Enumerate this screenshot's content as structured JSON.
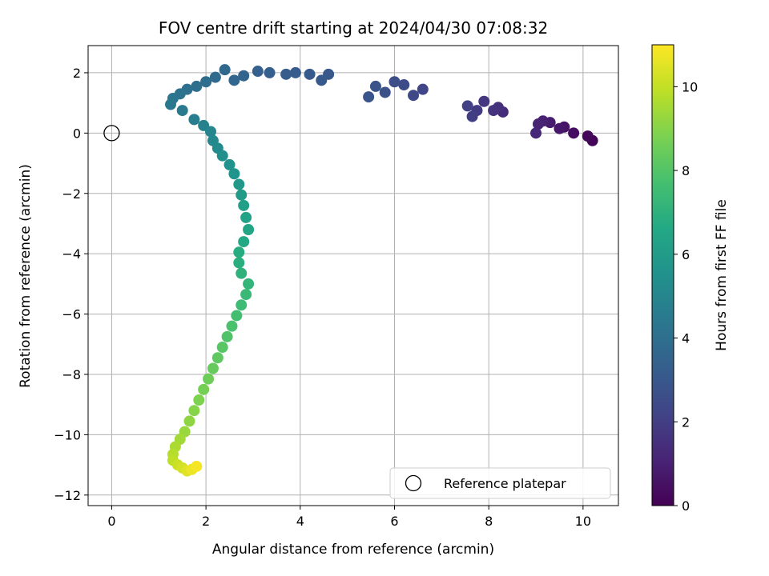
{
  "chart_data": {
    "type": "scatter",
    "title": "FOV centre drift starting at 2024/04/30 07:08:32",
    "xlabel": "Angular distance from reference (arcmin)",
    "ylabel": "Rotation from reference (arcmin)",
    "xlim": [
      -0.5,
      10.75
    ],
    "ylim": [
      -12.35,
      2.9
    ],
    "x_ticks": [
      0,
      2,
      4,
      6,
      8,
      10
    ],
    "y_ticks": [
      -12,
      -10,
      -8,
      -6,
      -4,
      -2,
      0,
      2
    ],
    "grid": true,
    "colormap": "viridis",
    "colorbar": {
      "label": "Hours from first FF file",
      "range": [
        0,
        11
      ],
      "ticks": [
        0,
        2,
        4,
        6,
        8,
        10
      ]
    },
    "reference_point": {
      "x": 0,
      "y": 0,
      "label": "Reference platepar"
    },
    "legend": {
      "placement": "lower-right",
      "entries": [
        "Reference platepar"
      ]
    },
    "series": [
      {
        "x": [
          10.2,
          10.1,
          9.8,
          9.6,
          9.5,
          9.3,
          9.15,
          9.05,
          9.0,
          8.3,
          8.2,
          8.1,
          7.9,
          7.75,
          7.65,
          7.55,
          6.6,
          6.4,
          6.2,
          6.0,
          5.8,
          5.6,
          5.45,
          4.6,
          4.45,
          4.2,
          3.9,
          3.7,
          3.35,
          3.1,
          2.8,
          2.6,
          2.4,
          2.2,
          2.0,
          1.8,
          1.6,
          1.45,
          1.3,
          1.25,
          1.5,
          1.75,
          1.95,
          2.1,
          2.15,
          2.25,
          2.35,
          2.5,
          2.6,
          2.7,
          2.75,
          2.8,
          2.85,
          2.9,
          2.8,
          2.7,
          2.7,
          2.75,
          2.9,
          2.85,
          2.75,
          2.65,
          2.55,
          2.45,
          2.35,
          2.25,
          2.15,
          2.05,
          1.95,
          1.85,
          1.75,
          1.65,
          1.55,
          1.45,
          1.35,
          1.3,
          1.3,
          1.4,
          1.5,
          1.6,
          1.7,
          1.8
        ],
        "y": [
          -0.25,
          -0.1,
          0.0,
          0.2,
          0.15,
          0.35,
          0.4,
          0.3,
          0.0,
          0.7,
          0.85,
          0.75,
          1.05,
          0.75,
          0.55,
          0.9,
          1.45,
          1.25,
          1.6,
          1.7,
          1.35,
          1.55,
          1.2,
          1.95,
          1.75,
          1.95,
          2.0,
          1.95,
          2.0,
          2.05,
          1.9,
          1.75,
          2.1,
          1.85,
          1.7,
          1.55,
          1.45,
          1.3,
          1.15,
          0.95,
          0.75,
          0.45,
          0.25,
          0.05,
          -0.25,
          -0.5,
          -0.75,
          -1.05,
          -1.35,
          -1.7,
          -2.05,
          -2.4,
          -2.8,
          -3.2,
          -3.6,
          -3.95,
          -4.3,
          -4.65,
          -5.0,
          -5.35,
          -5.7,
          -6.05,
          -6.4,
          -6.75,
          -7.1,
          -7.45,
          -7.8,
          -8.15,
          -8.5,
          -8.85,
          -9.2,
          -9.55,
          -9.9,
          -10.15,
          -10.4,
          -10.65,
          -10.85,
          -11.0,
          -11.1,
          -11.2,
          -11.15,
          -11.05
        ],
        "hours": [
          0.1,
          0.25,
          0.4,
          0.55,
          0.7,
          0.85,
          1.0,
          1.1,
          1.2,
          1.4,
          1.5,
          1.6,
          1.75,
          1.9,
          2.0,
          2.1,
          2.3,
          2.4,
          2.5,
          2.6,
          2.7,
          2.8,
          2.9,
          3.0,
          3.05,
          3.1,
          3.15,
          3.2,
          3.3,
          3.4,
          3.5,
          3.6,
          3.7,
          3.8,
          3.9,
          4.0,
          4.1,
          4.2,
          4.3,
          4.4,
          4.5,
          4.65,
          4.8,
          4.95,
          5.1,
          5.25,
          5.4,
          5.55,
          5.7,
          5.85,
          6.0,
          6.15,
          6.3,
          6.45,
          6.6,
          6.75,
          6.9,
          7.05,
          7.2,
          7.35,
          7.5,
          7.65,
          7.8,
          7.95,
          8.1,
          8.25,
          8.4,
          8.55,
          8.7,
          8.85,
          9.0,
          9.15,
          9.3,
          9.45,
          9.6,
          9.75,
          9.9,
          10.1,
          10.3,
          10.5,
          10.7,
          10.85
        ]
      }
    ]
  }
}
